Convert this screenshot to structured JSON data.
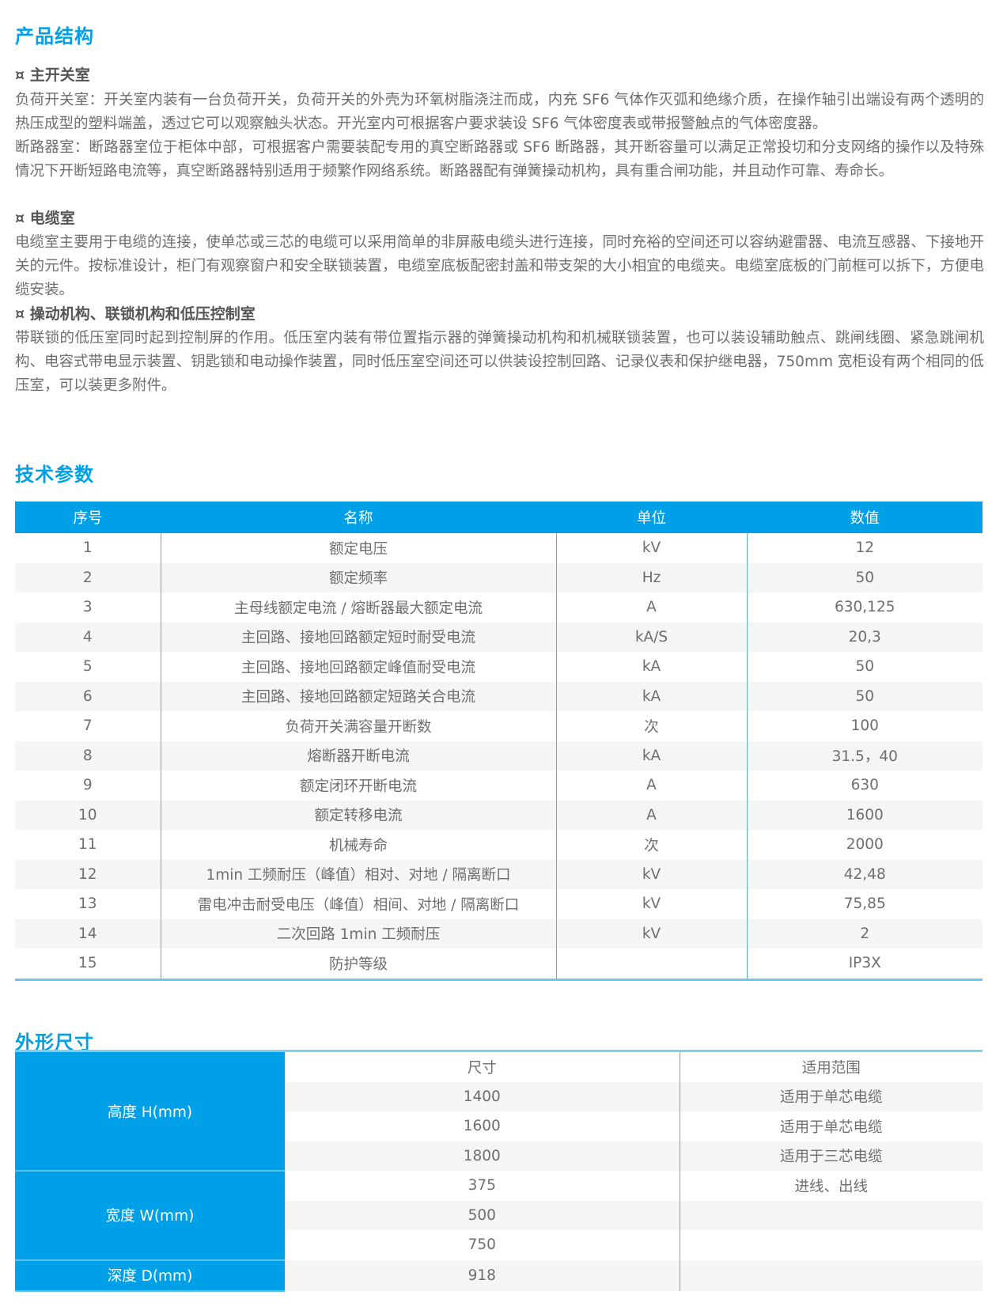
{
  "structure": {
    "title": "产品结构",
    "sections": [
      {
        "heading": "¤ 主开关室",
        "paragraphs": [
          "负荷开关室：开关室内装有一台负荷开关，负荷开关的外壳为环氧树脂浇注而成，内充 SF6 气体作灭弧和绝缘介质，在操作轴引出端设有两个透明的热压成型的塑料端盖，透过它可以观察触头状态。开光室内可根据客户要求装设 SF6 气体密度表或带报警触点的气体密度器。",
          "断路器室：断路器室位于柜体中部，可根据客户需要装配专用的真空断路器或 SF6 断路器，其开断容量可以满足正常投切和分支网络的操作以及特殊情况下开断短路电流等，真空断路器特别适用于频繁作网络系统。断路器配有弹簧操动机构，具有重合闸功能，并且动作可靠、寿命长。"
        ]
      },
      {
        "heading": "¤ 电缆室",
        "paragraphs": [
          "电缆室主要用于电缆的连接，使单芯或三芯的电缆可以采用简单的非屏蔽电缆头进行连接，同时充裕的空间还可以容纳避雷器、电流互感器、下接地开关的元件。按标准设计，柜门有观察窗户和安全联锁装置，电缆室底板配密封盖和带支架的大小相宜的电缆夹。电缆室底板的门前框可以拆下，方便电缆安装。"
        ]
      },
      {
        "heading": "¤ 操动机构、联锁机构和低压控制室",
        "paragraphs": [
          "带联锁的低压室同时起到控制屏的作用。低压室内装有带位置指示器的弹簧操动机构和机械联锁装置，也可以装设辅助触点、跳闸线圈、紧急跳闸机构、电容式带电显示装置、钥匙锁和电动操作装置，同时低压室空间还可以供装设控制回路、记录仪表和保护继电器，750mm 宽柜设有两个相同的低压室，可以装更多附件。"
        ]
      }
    ]
  },
  "tech": {
    "title": "技术参数",
    "headers": [
      "序号",
      "名称",
      "单位",
      "数值"
    ],
    "rows": [
      [
        "1",
        "额定电压",
        "kV",
        "12"
      ],
      [
        "2",
        "额定频率",
        "Hz",
        "50"
      ],
      [
        "3",
        "主母线额定电流 / 熔断器最大额定电流",
        "A",
        "630,125"
      ],
      [
        "4",
        "主回路、接地回路额定短时耐受电流",
        "kA/S",
        "20,3"
      ],
      [
        "5",
        "主回路、接地回路额定峰值耐受电流",
        "kA",
        "50"
      ],
      [
        "6",
        "主回路、接地回路额定短路关合电流",
        "kA",
        "50"
      ],
      [
        "7",
        "负荷开关满容量开断数",
        "次",
        "100"
      ],
      [
        "8",
        "熔断器开断电流",
        "kA",
        "31.5，40"
      ],
      [
        "9",
        "额定闭环开断电流",
        "A",
        "630"
      ],
      [
        "10",
        "额定转移电流",
        "A",
        "1600"
      ],
      [
        "11",
        "机械寿命",
        "次",
        "2000"
      ],
      [
        "12",
        "1min 工频耐压（峰值）相对、对地 / 隔离断口",
        "kV",
        "42,48"
      ],
      [
        "13",
        "雷电冲击耐受电压（峰值）相间、对地 / 隔离断口",
        "kV",
        "75,85"
      ],
      [
        "14",
        "二次回路 1min 工频耐压",
        "kV",
        "2"
      ],
      [
        "15",
        "防护等级",
        "",
        "IP3X"
      ]
    ]
  },
  "dims": {
    "title": "外形尺寸",
    "headers": [
      "尺寸",
      "适用范围"
    ],
    "groups": [
      {
        "label": "高度 H(mm)",
        "rows": [
          [
            "1400",
            "适用于单芯电缆"
          ],
          [
            "1600",
            "适用于单芯电缆"
          ],
          [
            "1800",
            "适用于三芯电缆"
          ]
        ]
      },
      {
        "label": "宽度 W(mm)",
        "rows": [
          [
            "375",
            "进线、出线"
          ],
          [
            "500",
            ""
          ],
          [
            "750",
            ""
          ]
        ]
      },
      {
        "label": "深度 D(mm)",
        "rows": [
          [
            "918",
            ""
          ]
        ]
      }
    ]
  },
  "colors": {
    "accent": "#00a0e9",
    "text": "#6e6e6e",
    "stripe": "#f5f5f5"
  }
}
